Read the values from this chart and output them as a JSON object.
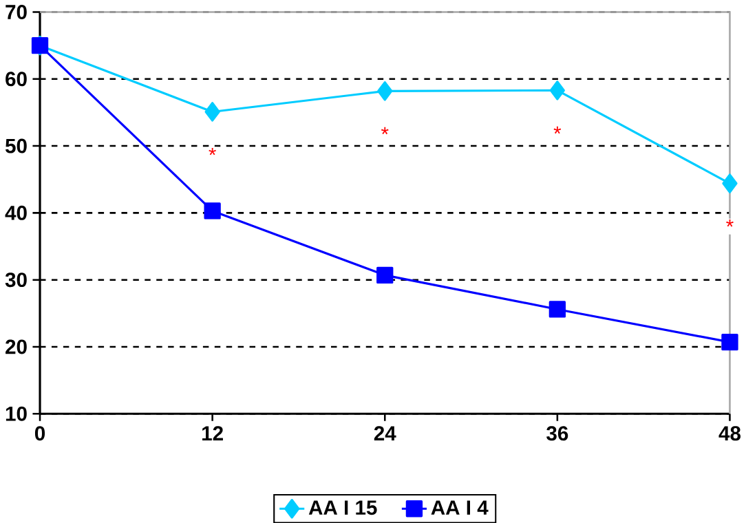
{
  "chart_data": {
    "type": "line",
    "x": [
      0,
      12,
      24,
      36,
      48
    ],
    "series": [
      {
        "name": "AA I 15",
        "color": "#00ccff",
        "marker": "diamond",
        "values": [
          65,
          55.1,
          58.2,
          58.3,
          44.4
        ]
      },
      {
        "name": "AA I 4",
        "color": "#0000ff",
        "marker": "square",
        "values": [
          65,
          40.3,
          30.7,
          25.6,
          20.7
        ]
      }
    ],
    "annotations": [
      "*",
      "*",
      "*",
      "*"
    ],
    "xlim": [
      0,
      48
    ],
    "xticks": [
      0,
      12,
      24,
      36,
      48
    ],
    "ylim": [
      10,
      70
    ],
    "yticks": [
      10,
      20,
      30,
      40,
      50,
      60,
      70
    ],
    "grid": "y",
    "legend": "bottom",
    "line_style": "solid"
  }
}
